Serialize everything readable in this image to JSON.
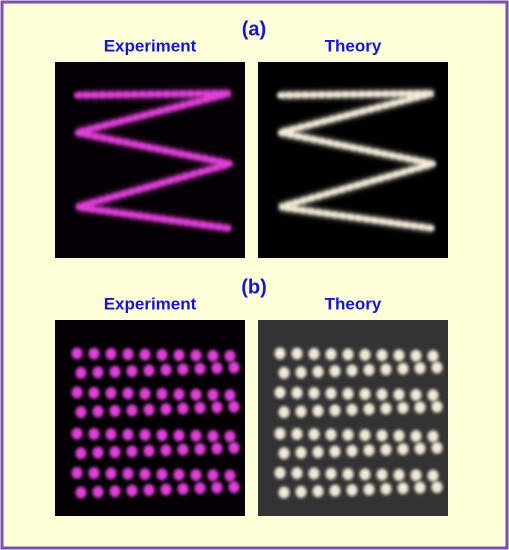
{
  "panels": [
    {
      "label": "(a)",
      "images": [
        {
          "title": "Experiment"
        },
        {
          "title": "Theory"
        }
      ]
    },
    {
      "label": "(b)",
      "images": [
        {
          "title": "Experiment"
        },
        {
          "title": "Theory"
        }
      ]
    }
  ]
}
